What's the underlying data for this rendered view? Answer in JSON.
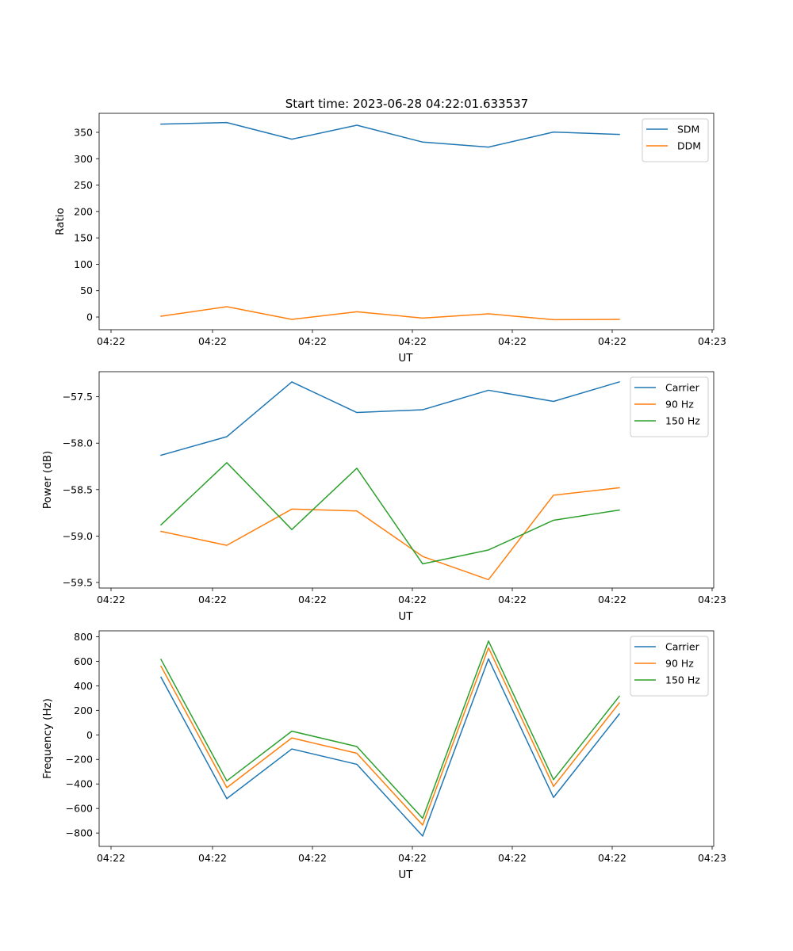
{
  "title": "Start time: 2023-06-28 04:22:01.633537",
  "colors": {
    "c0": "#1f77b4",
    "c1": "#ff7f0e",
    "c2": "#2ca02c"
  },
  "chart_data": [
    {
      "type": "line",
      "xlabel": "UT",
      "ylabel": "Ratio",
      "x_tick_labels": [
        "04:22",
        "04:22",
        "04:22",
        "04:22",
        "04:22",
        "04:22",
        "04:23"
      ],
      "yticks": [
        0,
        50,
        100,
        150,
        200,
        250,
        300,
        350
      ],
      "ylim": [
        -24,
        386
      ],
      "legend": "top-right",
      "series": [
        {
          "name": "SDM",
          "color": "#1f77b4",
          "values": [
            365.5,
            368.5,
            337,
            363.5,
            331.5,
            322,
            350.5,
            346
          ]
        },
        {
          "name": "DDM",
          "color": "#ff7f0e",
          "values": [
            1.5,
            19.5,
            -4.5,
            10,
            -2,
            6,
            -5,
            -4.5
          ]
        }
      ]
    },
    {
      "type": "line",
      "xlabel": "UT",
      "ylabel": "Power (dB)",
      "x_tick_labels": [
        "04:22",
        "04:22",
        "04:22",
        "04:22",
        "04:22",
        "04:22",
        "04:23"
      ],
      "yticks": [
        -59.5,
        -59.0,
        -58.5,
        -58.0,
        -57.5
      ],
      "ytick_labels": [
        "−59.5",
        "−59.0",
        "−58.5",
        "−58.0",
        "−57.5"
      ],
      "ylim": [
        -59.56,
        -57.23
      ],
      "legend": "top-right",
      "series": [
        {
          "name": "Carrier",
          "color": "#1f77b4",
          "values": [
            -58.13,
            -57.93,
            -57.34,
            -57.67,
            -57.64,
            -57.43,
            -57.55,
            -57.34
          ]
        },
        {
          "name": "90 Hz",
          "color": "#ff7f0e",
          "values": [
            -58.95,
            -59.1,
            -58.71,
            -58.73,
            -59.22,
            -59.47,
            -58.56,
            -58.48
          ]
        },
        {
          "name": "150 Hz",
          "color": "#2ca02c",
          "values": [
            -58.88,
            -58.21,
            -58.93,
            -58.27,
            -59.3,
            -59.15,
            -58.83,
            -58.72
          ]
        }
      ]
    },
    {
      "type": "line",
      "xlabel": "UT",
      "ylabel": "Frequency (Hz)",
      "x_tick_labels": [
        "04:22",
        "04:22",
        "04:22",
        "04:22",
        "04:22",
        "04:22",
        "04:23"
      ],
      "yticks": [
        -800,
        -600,
        -400,
        -200,
        0,
        200,
        400,
        600,
        800
      ],
      "ytick_labels": [
        "−800",
        "−600",
        "−400",
        "−200",
        "0",
        "200",
        "400",
        "600",
        "800"
      ],
      "ylim": [
        -909,
        848
      ],
      "legend": "top-right",
      "series": [
        {
          "name": "Carrier",
          "color": "#1f77b4",
          "values": [
            470,
            -520,
            -115,
            -240,
            -825,
            620,
            -510,
            170
          ]
        },
        {
          "name": "90 Hz",
          "color": "#ff7f0e",
          "values": [
            560,
            -430,
            -25,
            -150,
            -735,
            710,
            -420,
            260
          ]
        },
        {
          "name": "150 Hz",
          "color": "#2ca02c",
          "values": [
            615,
            -375,
            30,
            -95,
            -680,
            765,
            -365,
            315
          ]
        }
      ]
    }
  ]
}
